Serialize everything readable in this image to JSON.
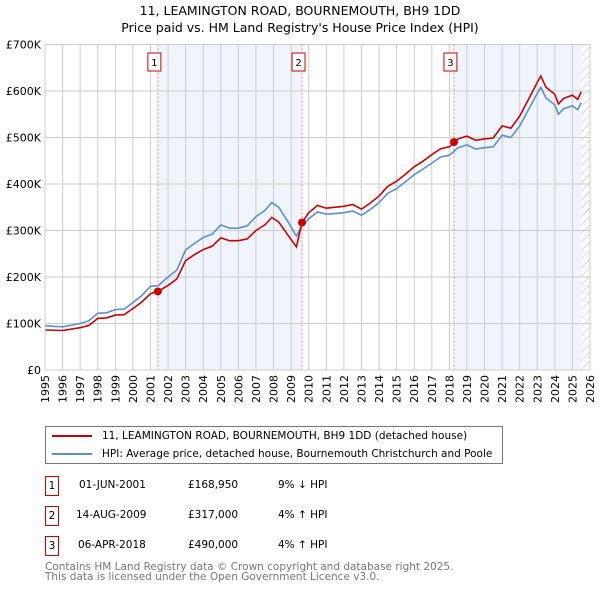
{
  "title": "11, LEAMINGTON ROAD, BOURNEMOUTH, BH9 1DD",
  "subtitle": "Price paid vs. HM Land Registry's House Price Index (HPI)",
  "chart_data": {
    "type": "line",
    "title": "11, LEAMINGTON ROAD, BOURNEMOUTH, BH9 1DD — Price paid vs. HM Land Registry's House Price Index (HPI)",
    "xlim": [
      1995,
      2026
    ],
    "ylim": [
      0,
      700000
    ],
    "y_ticks": [
      0,
      100000,
      200000,
      300000,
      400000,
      500000,
      600000,
      700000
    ],
    "y_tick_labels": [
      "£0",
      "£100K",
      "£200K",
      "£300K",
      "£400K",
      "£500K",
      "£600K",
      "£700K"
    ],
    "x_ticks": [
      1995,
      1996,
      1997,
      1998,
      1999,
      2000,
      2001,
      2002,
      2003,
      2004,
      2005,
      2006,
      2007,
      2008,
      2009,
      2010,
      2011,
      2012,
      2013,
      2014,
      2015,
      2016,
      2017,
      2018,
      2019,
      2020,
      2021,
      2022,
      2023,
      2024,
      2025,
      2026
    ],
    "grid": true,
    "x": [
      1995,
      1996,
      1997,
      1997.5,
      1998,
      1998.5,
      1999,
      1999.5,
      2000,
      2000.5,
      2001,
      2001.42,
      2002,
      2002.5,
      2003,
      2003.5,
      2004,
      2004.5,
      2005,
      2005.5,
      2006,
      2006.5,
      2007,
      2007.5,
      2007.9,
      2008.3,
      2008.8,
      2009.3,
      2009.62,
      2010,
      2010.5,
      2011,
      2012,
      2012.5,
      2013,
      2013.5,
      2014,
      2014.5,
      2015,
      2015.5,
      2016,
      2016.5,
      2017,
      2017.5,
      2018,
      2018.5,
      2019,
      2019.5,
      2020,
      2020.5,
      2021,
      2021.5,
      2022,
      2022.5,
      2023,
      2023.2,
      2023.5,
      2024,
      2024.2,
      2024.5,
      2025,
      2025.3,
      2025.5
    ],
    "series": [
      {
        "name": "11, LEAMINGTON ROAD, BOURNEMOUTH, BH9 1DD (detached house)",
        "color": "#cc0000",
        "values": [
          86000,
          85000,
          91000,
          96000,
          111000,
          112000,
          118000,
          119000,
          132000,
          146000,
          164000,
          168950,
          182000,
          196000,
          235000,
          248000,
          259000,
          266000,
          284000,
          278000,
          278000,
          282000,
          300000,
          312000,
          328000,
          318000,
          291000,
          265000,
          317000,
          338000,
          354000,
          348000,
          352000,
          356000,
          346000,
          359000,
          374000,
          395000,
          406000,
          421000,
          437000,
          449000,
          463000,
          476000,
          480000,
          497000,
          503000,
          494000,
          497000,
          499000,
          525000,
          520000,
          546000,
          582000,
          619000,
          632000,
          608000,
          593000,
          572000,
          584000,
          591000,
          582000,
          598000
        ]
      },
      {
        "name": "HPI: Average price, detached house, Bournemouth Christchurch and Poole",
        "color": "#5b8fd0",
        "values": [
          95000,
          93000,
          100000,
          106000,
          122000,
          123000,
          130000,
          131000,
          145000,
          160000,
          180000,
          181000,
          200000,
          215000,
          258000,
          272000,
          285000,
          292000,
          312000,
          305000,
          305000,
          310000,
          330000,
          343000,
          360000,
          350000,
          320000,
          288000,
          310000,
          325000,
          340000,
          335000,
          338000,
          342000,
          333000,
          345000,
          360000,
          380000,
          390000,
          405000,
          420000,
          432000,
          445000,
          458000,
          462000,
          478000,
          484000,
          475000,
          478000,
          480000,
          505000,
          500000,
          525000,
          560000,
          595000,
          608000,
          585000,
          570000,
          550000,
          562000,
          568000,
          560000,
          575000
        ]
      }
    ],
    "sales": [
      {
        "label": "1",
        "x": 2001.42,
        "value": 168950,
        "date": "01-JUN-2001",
        "price": "£168,950",
        "hpi": "9% ↓ HPI"
      },
      {
        "label": "2",
        "x": 2009.62,
        "value": 317000,
        "date": "14-AUG-2009",
        "price": "£317,000",
        "hpi": "4% ↑ HPI"
      },
      {
        "label": "3",
        "x": 2018.26,
        "value": 490000,
        "date": "06-APR-2018",
        "price": "£490,000",
        "hpi": "4% ↑ HPI"
      }
    ],
    "shaded_ranges": [
      [
        2001.42,
        2009.62
      ],
      [
        2018.26,
        2025.5
      ]
    ],
    "forecast_hatch_from": 2025.5
  },
  "footer": [
    "Contains HM Land Registry data © Crown copyright and database right 2025.",
    "This data is licensed under the Open Government Licence v3.0."
  ]
}
